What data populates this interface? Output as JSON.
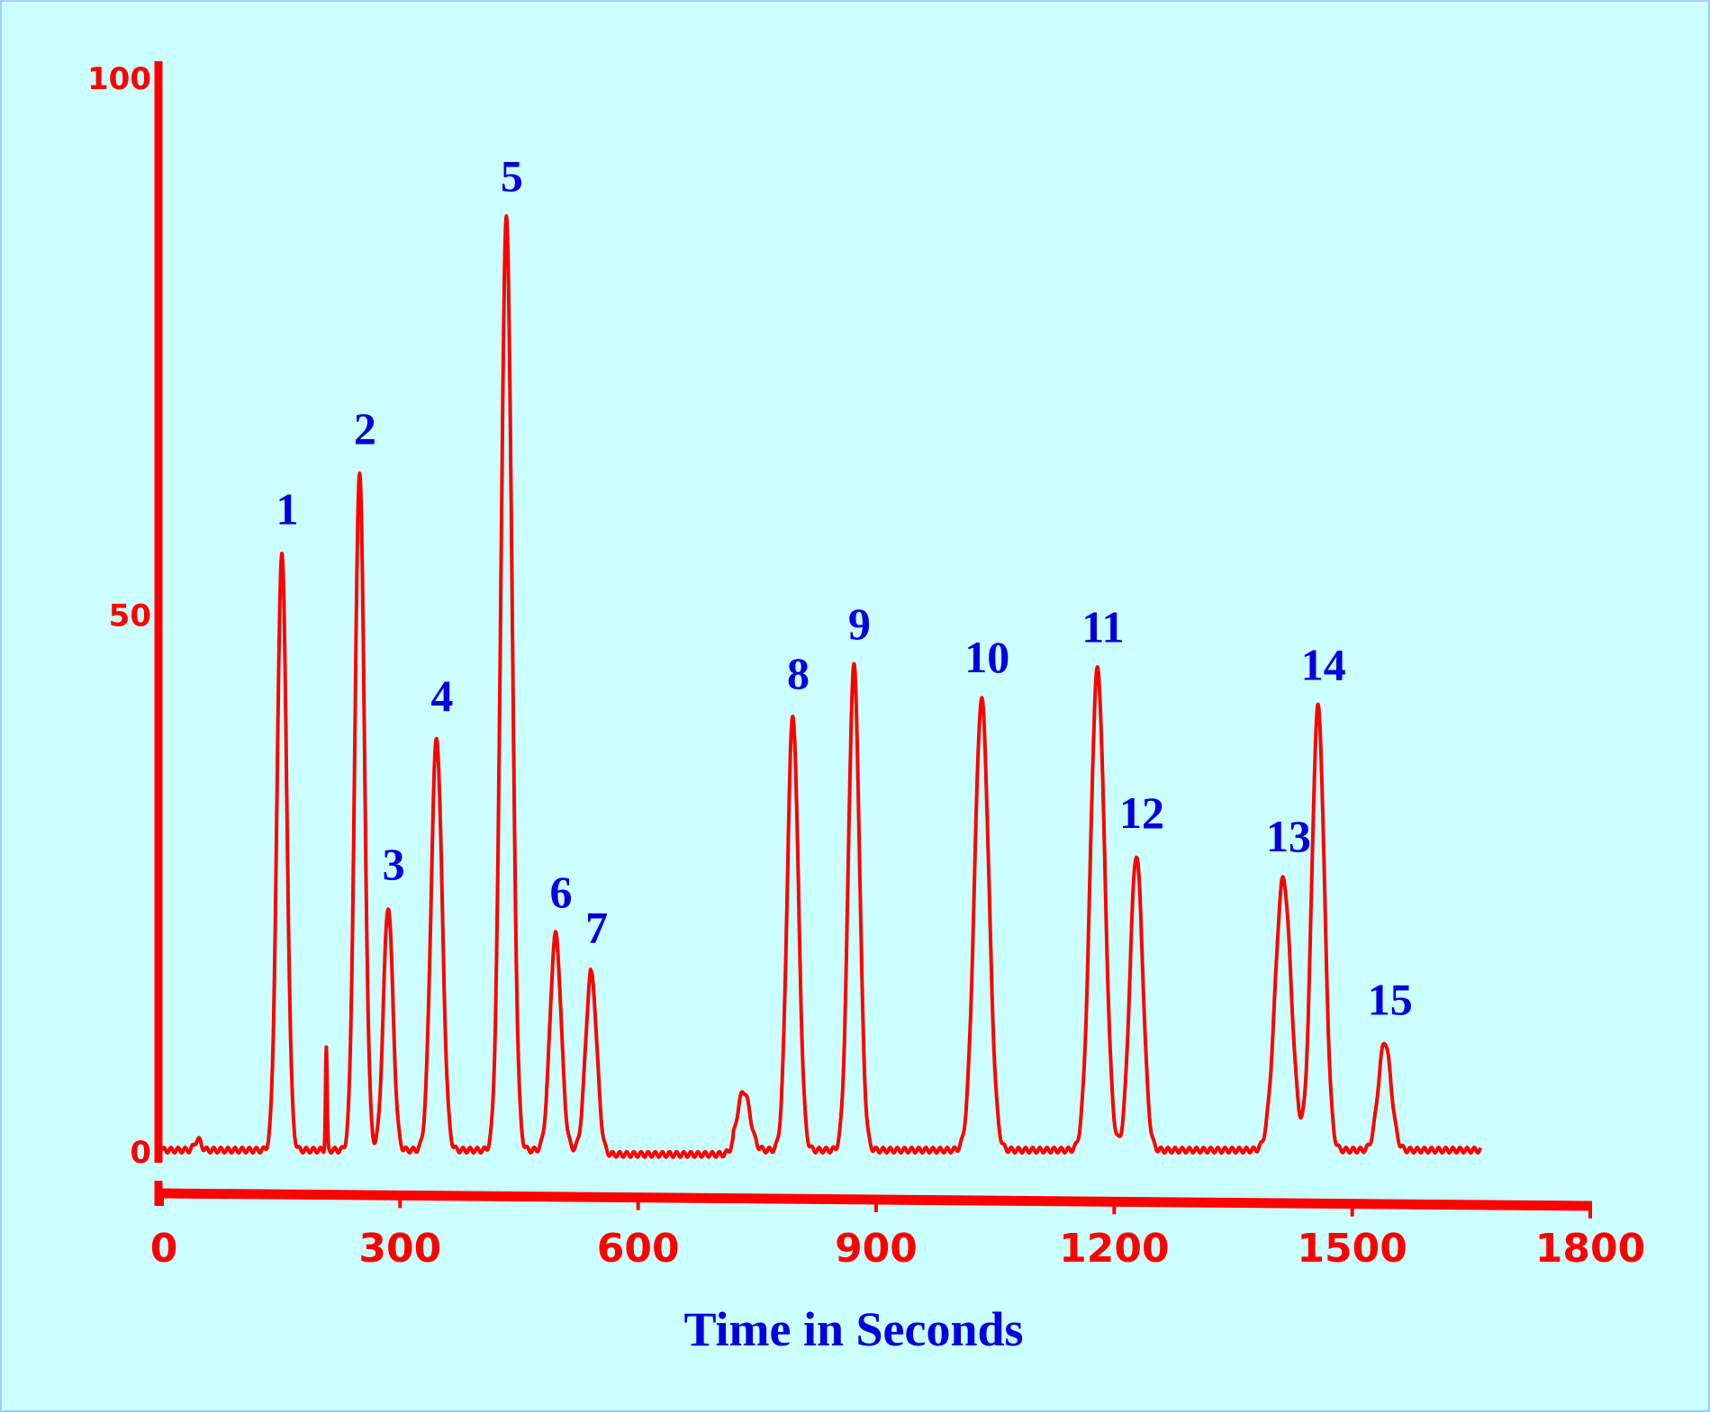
{
  "chart_data": {
    "type": "line",
    "title": "",
    "xlabel": "Time in Seconds",
    "ylabel": "",
    "xlim": [
      0,
      1800
    ],
    "ylim": [
      0,
      100
    ],
    "x_ticks": [
      "0",
      "300",
      "600",
      "900",
      "1200",
      "1500",
      "1800"
    ],
    "y_ticks": [
      "0",
      "50",
      "100"
    ],
    "grid": false,
    "colors": {
      "trace": "#ff0000",
      "labels": "#0000dd",
      "background": "#ccffff"
    },
    "trace_end_time": 1662,
    "peaks": [
      {
        "label": "1",
        "time": 151,
        "height": 55.8,
        "width": 6
      },
      {
        "label": "2",
        "time": 249,
        "height": 63.3,
        "width": 6
      },
      {
        "label": "3",
        "time": 285,
        "height": 22.7,
        "width": 6
      },
      {
        "label": "4",
        "time": 346,
        "height": 38.4,
        "width": 7
      },
      {
        "label": "5",
        "time": 434,
        "height": 86.8,
        "width": 7
      },
      {
        "label": "6",
        "time": 496,
        "height": 20.1,
        "width": 7
      },
      {
        "label": "7",
        "time": 541,
        "height": 16.8,
        "width": 7
      },
      {
        "label": "8",
        "time": 795,
        "height": 40.5,
        "width": 7
      },
      {
        "label": "9",
        "time": 872,
        "height": 45.1,
        "width": 7
      },
      {
        "label": "10",
        "time": 1033,
        "height": 42.0,
        "width": 9
      },
      {
        "label": "11",
        "time": 1179,
        "height": 44.8,
        "width": 9
      },
      {
        "label": "12",
        "time": 1228,
        "height": 27.5,
        "width": 8
      },
      {
        "label": "13",
        "time": 1413,
        "height": 25.3,
        "width": 10
      },
      {
        "label": "14",
        "time": 1457,
        "height": 41.3,
        "width": 8
      },
      {
        "label": "15",
        "time": 1541,
        "height": 10.1,
        "width": 8
      }
    ],
    "minor_peaks": [
      {
        "time": 45,
        "height": 1.0,
        "width": 4
      },
      {
        "time": 207,
        "height": 9.5,
        "width": 1
      },
      {
        "time": 733,
        "height": 5.5,
        "width": 8
      }
    ]
  }
}
